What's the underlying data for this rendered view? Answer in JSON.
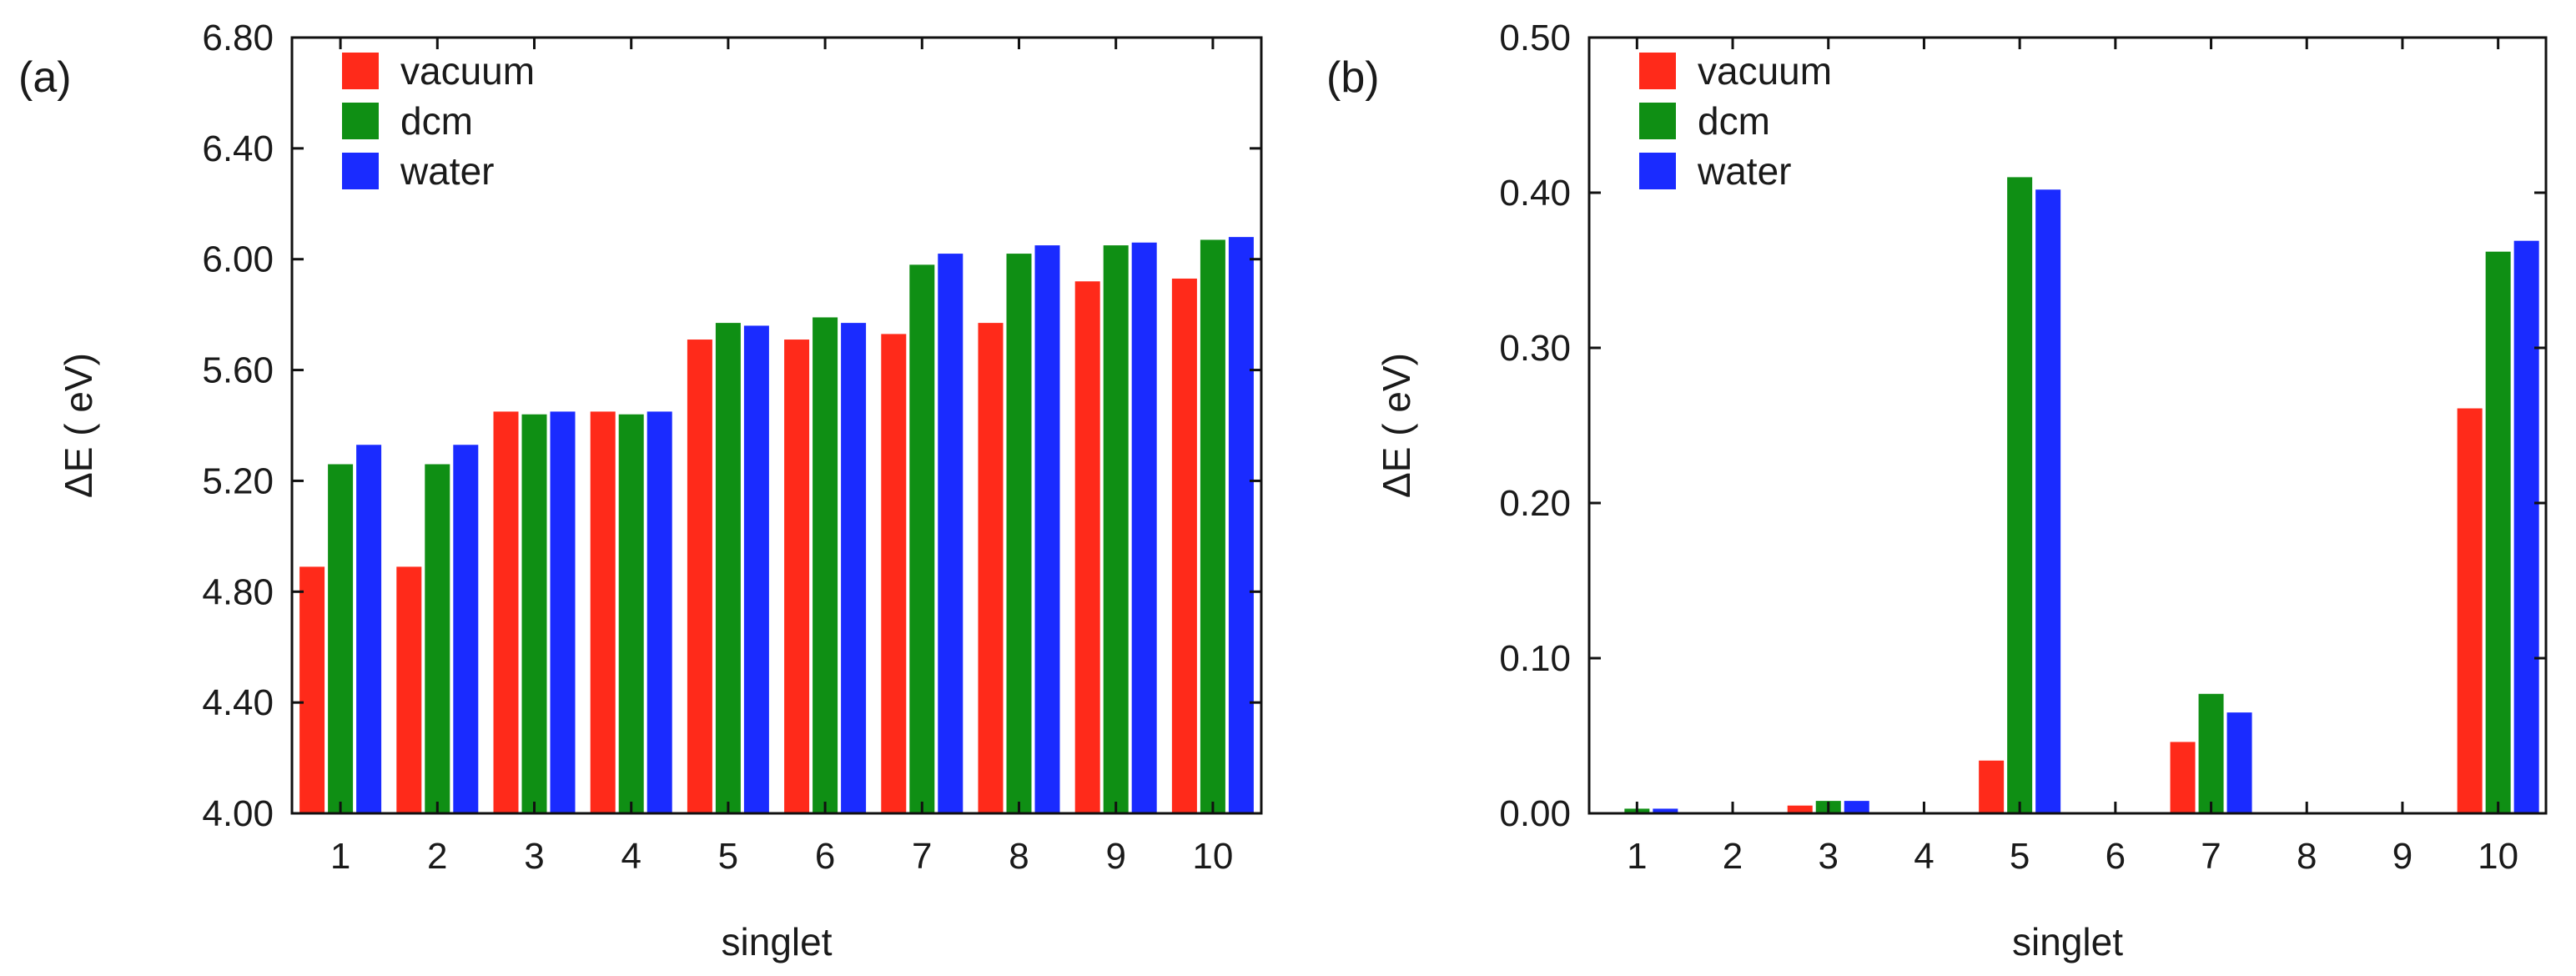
{
  "chart_data": [
    {
      "type": "bar",
      "panel_label": "(a)",
      "categories": [
        "1",
        "2",
        "3",
        "4",
        "5",
        "6",
        "7",
        "8",
        "9",
        "10"
      ],
      "series": [
        {
          "name": "vacuum",
          "color": "#ff2a1a",
          "values": [
            4.89,
            4.89,
            5.45,
            5.45,
            5.71,
            5.71,
            5.73,
            5.77,
            5.92,
            5.93
          ]
        },
        {
          "name": "dcm",
          "color": "#0f8f14",
          "values": [
            5.26,
            5.26,
            5.44,
            5.44,
            5.77,
            5.79,
            5.98,
            6.02,
            6.05,
            6.07
          ]
        },
        {
          "name": "water",
          "color": "#1a2bff",
          "values": [
            5.33,
            5.33,
            5.45,
            5.45,
            5.76,
            5.77,
            6.02,
            6.05,
            6.06,
            6.08
          ]
        }
      ],
      "xlabel": "singlet",
      "ylabel": "ΔE ( eV)",
      "ylim": [
        4.0,
        6.8
      ],
      "yticks": [
        "4.00",
        "4.40",
        "4.80",
        "5.20",
        "5.60",
        "6.00",
        "6.40",
        "6.80"
      ],
      "legend_position": "top-left"
    },
    {
      "type": "bar",
      "panel_label": "(b)",
      "categories": [
        "1",
        "2",
        "3",
        "4",
        "5",
        "6",
        "7",
        "8",
        "9",
        "10"
      ],
      "series": [
        {
          "name": "vacuum",
          "color": "#ff2a1a",
          "values": [
            0.0,
            0.0,
            0.005,
            0.0,
            0.034,
            0.0,
            0.046,
            0.0,
            0.0,
            0.261
          ]
        },
        {
          "name": "dcm",
          "color": "#0f8f14",
          "values": [
            0.003,
            0.0,
            0.008,
            0.0,
            0.41,
            0.0,
            0.077,
            0.0,
            0.0,
            0.362
          ]
        },
        {
          "name": "water",
          "color": "#1a2bff",
          "values": [
            0.003,
            0.0,
            0.008,
            0.0,
            0.402,
            0.0,
            0.065,
            0.0,
            0.0,
            0.369
          ]
        }
      ],
      "xlabel": "singlet",
      "ylabel": "ΔE ( eV)",
      "ylim": [
        0.0,
        0.5
      ],
      "yticks": [
        "0.00",
        "0.10",
        "0.20",
        "0.30",
        "0.40",
        "0.50"
      ],
      "legend_position": "top-left"
    }
  ]
}
